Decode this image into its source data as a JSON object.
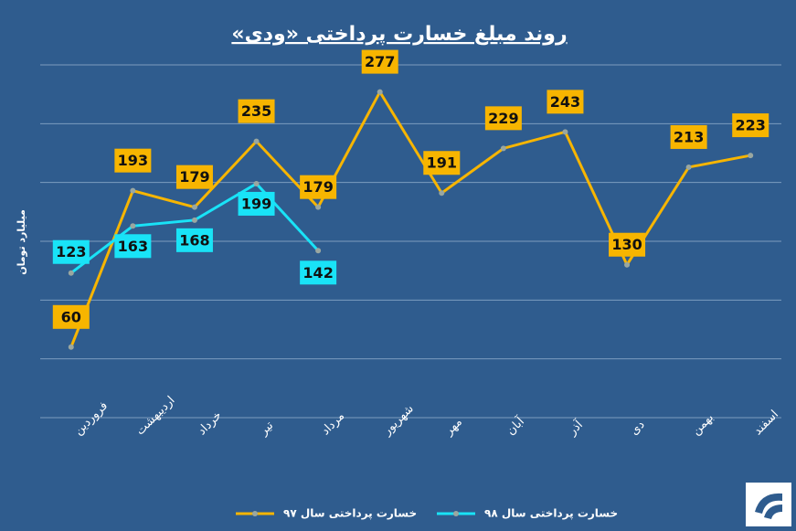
{
  "chart_data": {
    "type": "line",
    "title": "روند مبلغ خسارت پرداختی «ودی»",
    "y_axis_label": "میلیارد تومان",
    "categories": [
      "فروردین",
      "اردیبهشت",
      "خرداد",
      "تیر",
      "مرداد",
      "شهریور",
      "مهر",
      "آبان",
      "آذر",
      "دی",
      "بهمن",
      "اسفند"
    ],
    "series": [
      {
        "name": "خسارت پرداختی سال ۹۷",
        "color": "#f7b500",
        "values": [
          60,
          193,
          179,
          235,
          179,
          277,
          191,
          229,
          243,
          130,
          213,
          223
        ]
      },
      {
        "name": "خسارت پرداختی سال ۹۸",
        "color": "#19e3f7",
        "values": [
          123,
          163,
          168,
          199,
          142,
          null,
          null,
          null,
          null,
          null,
          null,
          null
        ]
      }
    ],
    "ylim": [
      0,
      300
    ],
    "yticks": [
      0,
      50,
      100,
      150,
      200,
      250,
      300
    ],
    "grid": true,
    "legend": "bottom"
  }
}
